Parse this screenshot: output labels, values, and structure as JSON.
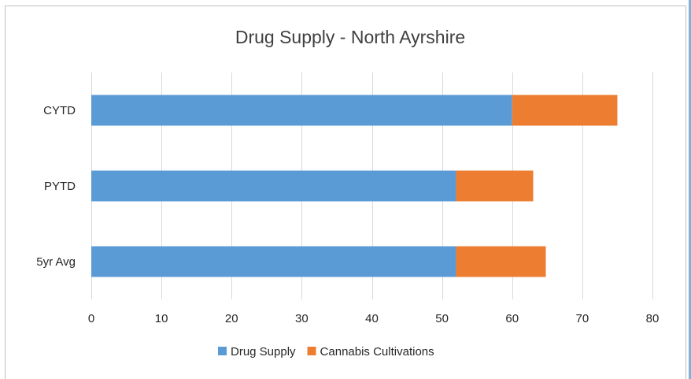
{
  "chart_data": {
    "type": "bar",
    "orientation": "horizontal",
    "stacked": true,
    "title": "Drug Supply - North Ayrshire",
    "categories": [
      "CYTD",
      "PYTD",
      "5yr Avg"
    ],
    "series": [
      {
        "name": "Drug Supply",
        "color": "#5b9bd5",
        "values": [
          60,
          52,
          52
        ]
      },
      {
        "name": "Cannabis Cultivations",
        "color": "#ed7d31",
        "values": [
          15,
          11,
          12.8
        ]
      }
    ],
    "xlim": [
      0,
      80
    ],
    "x_ticks": [
      "0",
      "10",
      "20",
      "30",
      "40",
      "50",
      "60",
      "70",
      "80"
    ],
    "grid": "vertical",
    "legend_position": "bottom"
  }
}
